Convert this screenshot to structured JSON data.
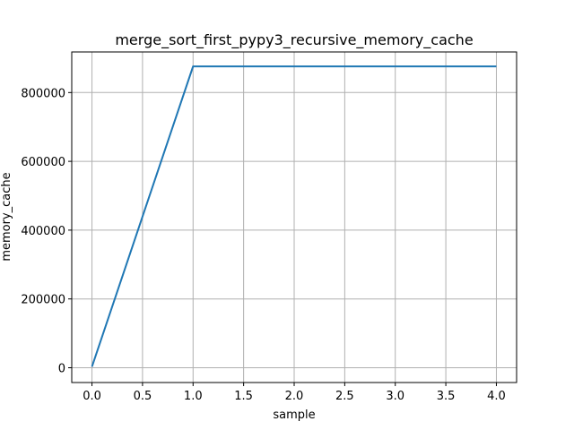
{
  "chart_data": {
    "type": "line",
    "title": "merge_sort_first_pypy3_recursive_memory_cache",
    "xlabel": "sample",
    "ylabel": "memory_cache",
    "xlim": [
      -0.2,
      4.2
    ],
    "ylim": [
      -43000,
      918000
    ],
    "xticks": [
      0.0,
      0.5,
      1.0,
      1.5,
      2.0,
      2.5,
      3.0,
      3.5,
      4.0
    ],
    "xtick_labels": [
      "0.0",
      "0.5",
      "1.0",
      "1.5",
      "2.0",
      "2.5",
      "3.0",
      "3.5",
      "4.0"
    ],
    "yticks": [
      0,
      200000,
      400000,
      600000,
      800000
    ],
    "ytick_labels": [
      "0",
      "200000",
      "400000",
      "600000",
      "800000"
    ],
    "grid": true,
    "series": [
      {
        "color": "#1f77b4",
        "x": [
          0,
          1,
          2,
          3,
          4
        ],
        "y": [
          3000,
          876000,
          876000,
          876000,
          876000
        ]
      }
    ]
  }
}
